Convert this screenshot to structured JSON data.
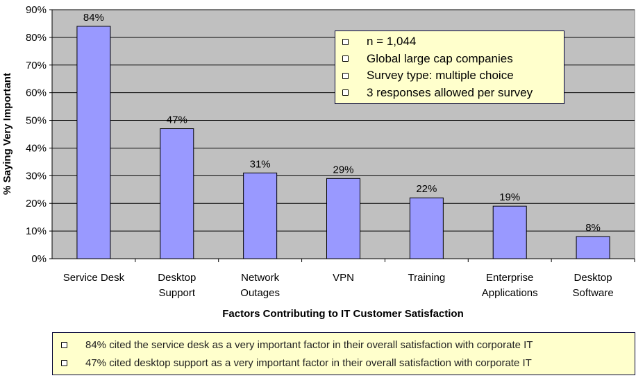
{
  "chart_data": {
    "type": "bar",
    "categories": [
      "Service Desk",
      "Desktop Support",
      "Network Outages",
      "VPN",
      "Training",
      "Enterprise Applications",
      "Desktop Software"
    ],
    "category_lines": [
      [
        "Service Desk"
      ],
      [
        "Desktop",
        "Support"
      ],
      [
        "Network",
        "Outages"
      ],
      [
        "VPN"
      ],
      [
        "Training"
      ],
      [
        "Enterprise",
        "Applications"
      ],
      [
        "Desktop",
        "Software"
      ]
    ],
    "values": [
      84,
      47,
      31,
      29,
      22,
      19,
      8
    ],
    "data_labels": [
      "84%",
      "47%",
      "31%",
      "29%",
      "22%",
      "19%",
      "8%"
    ],
    "xlabel": "Factors Contributing to IT Customer Satisfaction",
    "ylabel": "% Saying Very Important",
    "ylim": [
      0,
      90
    ],
    "yticks": [
      "0%",
      "10%",
      "20%",
      "30%",
      "40%",
      "50%",
      "60%",
      "70%",
      "80%",
      "90%"
    ],
    "grid": true,
    "colors": {
      "bar": "#9999ff",
      "plot_bg": "#c0c0c0",
      "box_bg": "#ffffcc"
    }
  },
  "legend_box": {
    "items": [
      "n = 1,044",
      "Global large cap companies",
      "Survey type: multiple choice",
      "3 responses allowed per survey"
    ]
  },
  "notes": {
    "items": [
      "84% cited the service desk as a very important factor in their overall satisfaction with corporate IT",
      "47% cited desktop support as a very important factor in their overall satisfaction with corporate IT"
    ]
  }
}
